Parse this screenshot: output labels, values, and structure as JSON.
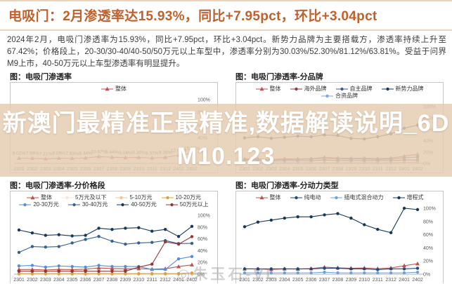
{
  "header": {
    "title": "电吸门：2月渗透率达15.93%，同比+7.95pct，环比+3.04pct",
    "summary": "2024年2月，电吸门渗透率为15.93%，同比+7.95pct，环比+3.04pct。新势力品牌为主要搭载方，渗透率持续上升至67.42%；价格段上，20-30/30-40/40-50/50万元以上车型中，渗透率分别为30.03%/52.30%/81.12%/63.81%。受益于问界M9上市，40-50万元以上车型渗透率有明显提升。",
    "accent_color": "#c0612c"
  },
  "watermark": {
    "line1": "新澳门最精准正最精准,数据解读说明_6D",
    "line2": "M10.123",
    "corner": "◎朱玉石-VL",
    "band_color": "#e5cdb3"
  },
  "chart_data": [
    {
      "type": "line",
      "title": "图：电吸门渗透率",
      "categories": [
        "2301",
        "2302",
        "2303",
        "2304",
        "2305",
        "2306",
        "2307",
        "2308",
        "2309",
        "2310",
        "2311",
        "2312",
        "2401",
        "2402"
      ],
      "ylim": [
        0,
        100
      ],
      "yticks": [
        0,
        20,
        40,
        60,
        80,
        100
      ],
      "legend_position": "top",
      "grid": false,
      "series": [
        {
          "name": "整体",
          "color": "#C0504D",
          "marker": "triangle",
          "values": [
            8.02,
            7.98,
            7.21,
            8.09,
            7.83,
            8.44,
            10.67,
            9.64,
            9.04,
            9.38,
            8.37,
            9.35,
            12.89,
            15.93
          ],
          "labels": [
            "8.02%",
            "7.98%",
            "7.21%",
            "8.09%",
            "7.83%",
            "8.44%",
            "10.67%",
            "9.64%",
            "9.04%",
            "9.38%",
            "8.37%",
            "9.35%",
            "12.89%",
            "15.93%"
          ]
        }
      ]
    },
    {
      "type": "line",
      "title": "图：电吸门渗透率-分品牌",
      "categories": [
        "2301",
        "2302",
        "2303",
        "2304",
        "2305",
        "2306",
        "2307",
        "2308",
        "2309",
        "2310",
        "2311",
        "2312",
        "2401",
        "2402"
      ],
      "ylim": [
        0,
        100
      ],
      "yticks": [
        0,
        20,
        40,
        60,
        80,
        100
      ],
      "legend_position": "top",
      "grid": false,
      "series": [
        {
          "name": "整体",
          "color": "#C0504D",
          "marker": "triangle",
          "values": [
            8.02,
            7.98,
            7.21,
            8.09,
            7.83,
            8.44,
            10.67,
            9.64,
            9.04,
            9.38,
            8.37,
            9.35,
            12.89,
            15.93
          ]
        },
        {
          "name": "海外品牌",
          "color": "#953735",
          "marker": "dot",
          "values": [
            5,
            5,
            4,
            5,
            5,
            5,
            6,
            5,
            5,
            5,
            5,
            5,
            6,
            6
          ]
        },
        {
          "name": "自主品牌",
          "color": "#376092",
          "marker": "dot",
          "values": [
            7,
            7,
            6,
            7,
            7,
            8,
            9,
            8,
            8,
            8,
            7,
            8,
            10,
            11
          ]
        },
        {
          "name": "新势力品牌",
          "color": "#17375E",
          "marker": "dot",
          "values": [
            45,
            47,
            44,
            46,
            48,
            47,
            50,
            49,
            44,
            43,
            47,
            52,
            62,
            67.42
          ]
        },
        {
          "name": "合资品牌",
          "color": "#7FA8D9",
          "marker": "dot",
          "values": [
            1,
            1,
            1,
            1,
            1,
            1,
            1,
            1,
            1,
            1,
            1,
            1,
            2,
            2
          ]
        }
      ]
    },
    {
      "type": "line",
      "title": "图：电吸门渗透率-分价格段",
      "categories": [
        "2301",
        "2302",
        "2303",
        "2304",
        "2305",
        "2306",
        "2307",
        "2308",
        "2309",
        "2310",
        "2311",
        "2312",
        "2401",
        "2402"
      ],
      "ylim": [
        0,
        100
      ],
      "yticks": [
        0,
        20,
        40,
        60,
        80,
        100
      ],
      "legend_position": "top",
      "grid": false,
      "series": [
        {
          "name": "整体",
          "color": "#C0504D",
          "marker": "triangle",
          "values": [
            8.02,
            7.98,
            7.21,
            8.09,
            7.83,
            8.44,
            10.67,
            9.64,
            9.04,
            9.38,
            8.37,
            9.35,
            12.89,
            15.93
          ]
        },
        {
          "name": "5万元及以下",
          "color": "#FBE5D0",
          "marker": "dot",
          "values": [
            0,
            0,
            0,
            0,
            0,
            0,
            0,
            0,
            0,
            0,
            0,
            0,
            0,
            0
          ]
        },
        {
          "name": "5-10万元",
          "color": "#FAC090",
          "marker": "dot",
          "values": [
            0,
            0,
            0,
            0,
            0,
            0,
            0,
            0,
            0,
            0,
            0,
            0,
            0,
            0
          ]
        },
        {
          "name": "10-20万元",
          "color": "#D9A33B",
          "marker": "dot",
          "values": [
            1,
            1,
            1,
            1,
            1,
            1,
            1,
            1,
            1,
            1,
            1,
            1,
            1,
            2
          ]
        },
        {
          "name": "20-30万元",
          "color": "#558ED5",
          "marker": "dot",
          "values": [
            14,
            15,
            12,
            14,
            13,
            12,
            15,
            13,
            13,
            13,
            8,
            8,
            26,
            30.03
          ]
        },
        {
          "name": "30-40万元",
          "color": "#376092",
          "marker": "dot",
          "values": [
            37,
            47,
            46,
            47,
            53,
            59,
            64,
            56,
            51,
            53,
            54,
            57,
            52,
            52.3
          ]
        },
        {
          "name": "40-50万元",
          "color": "#17375E",
          "marker": "dot",
          "values": [
            75,
            70,
            66,
            67,
            65,
            66,
            78,
            76,
            78,
            79,
            73,
            76,
            64,
            81.12
          ]
        },
        {
          "name": "50万元以上",
          "color": "#943634",
          "marker": "dot",
          "values": [
            5,
            5,
            5,
            5,
            5,
            5,
            5,
            5,
            5,
            12,
            17,
            55,
            51,
            63.81
          ]
        }
      ]
    },
    {
      "type": "line",
      "title": "图：电吸门渗透率-分动力类型",
      "categories": [
        "2301",
        "2302",
        "2303",
        "2304",
        "2305",
        "2306",
        "2307",
        "2308",
        "2309",
        "2310",
        "2311",
        "2312",
        "2401",
        "2402"
      ],
      "ylim": [
        0,
        100
      ],
      "yticks": [
        0,
        20,
        40,
        60,
        80,
        100
      ],
      "legend_position": "top",
      "grid": false,
      "series": [
        {
          "name": "整体",
          "color": "#C0504D",
          "marker": "triangle",
          "values": [
            8.02,
            7.98,
            7.21,
            8.09,
            7.83,
            8.44,
            10.67,
            9.64,
            9.04,
            9.38,
            8.37,
            9.35,
            12.89,
            15.93
          ]
        },
        {
          "name": "纯电动",
          "color": "#1F497D",
          "marker": "dot",
          "values": [
            8,
            8,
            8,
            8,
            8,
            8,
            9,
            9,
            8,
            8,
            7,
            8,
            8,
            9
          ]
        },
        {
          "name": "插电式混合动力",
          "color": "#6FA0D8",
          "marker": "dot",
          "values": [
            2,
            2,
            2,
            2,
            2,
            2,
            3,
            2,
            2,
            2,
            2,
            2,
            2,
            3
          ]
        },
        {
          "name": "增程式",
          "color": "#17375E",
          "marker": "dot",
          "values": [
            72,
            79,
            82,
            85,
            87,
            87,
            90,
            92,
            85,
            75,
            68,
            63,
            100,
            98
          ]
        }
      ]
    }
  ]
}
